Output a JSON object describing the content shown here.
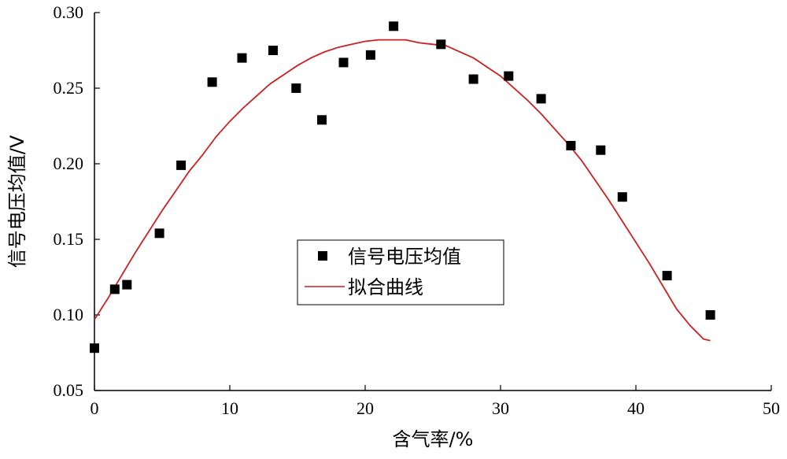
{
  "chart_data": {
    "type": "scatter",
    "title": "",
    "xlabel": "含气率/%",
    "ylabel": "信号电压均值/V",
    "xlim": [
      0,
      50
    ],
    "ylim": [
      0.05,
      0.3
    ],
    "xticks": [
      "0",
      "10",
      "20",
      "30",
      "40",
      "50"
    ],
    "yticks": [
      "0.05",
      "0.10",
      "0.15",
      "0.20",
      "0.25",
      "0.30"
    ],
    "grid": false,
    "legend_position": "center",
    "series": [
      {
        "name": "信号电压均值",
        "kind": "scatter",
        "marker": "square",
        "color": "#000000",
        "x": [
          0.0,
          1.5,
          2.4,
          4.8,
          6.4,
          8.7,
          10.9,
          13.2,
          14.9,
          16.8,
          18.4,
          20.4,
          22.1,
          25.6,
          28.0,
          30.6,
          33.0,
          35.2,
          37.4,
          39.0,
          42.3,
          45.5
        ],
        "y": [
          0.078,
          0.117,
          0.12,
          0.154,
          0.199,
          0.254,
          0.27,
          0.275,
          0.25,
          0.229,
          0.267,
          0.272,
          0.291,
          0.279,
          0.256,
          0.258,
          0.243,
          0.212,
          0.209,
          0.178,
          0.126,
          0.1
        ]
      },
      {
        "name": "拟合曲线",
        "kind": "line",
        "color": "#cc1f1f",
        "x": [
          0,
          1,
          2,
          3,
          4,
          5,
          6,
          7,
          8,
          9,
          10,
          11,
          12,
          13,
          14,
          15,
          16,
          17,
          18,
          19,
          20,
          21,
          22,
          23,
          24,
          25,
          26,
          27,
          28,
          29,
          30,
          31,
          32,
          33,
          34,
          35,
          36,
          37,
          38,
          39,
          40,
          41,
          42,
          43,
          44,
          45,
          45.5
        ],
        "y": [
          0.097,
          0.111,
          0.126,
          0.141,
          0.155,
          0.169,
          0.182,
          0.195,
          0.206,
          0.218,
          0.228,
          0.237,
          0.245,
          0.253,
          0.259,
          0.265,
          0.27,
          0.274,
          0.277,
          0.279,
          0.281,
          0.282,
          0.282,
          0.282,
          0.28,
          0.279,
          0.278,
          0.274,
          0.27,
          0.264,
          0.258,
          0.25,
          0.242,
          0.233,
          0.223,
          0.213,
          0.202,
          0.189,
          0.176,
          0.162,
          0.148,
          0.134,
          0.119,
          0.104,
          0.093,
          0.084,
          0.083
        ]
      }
    ]
  }
}
